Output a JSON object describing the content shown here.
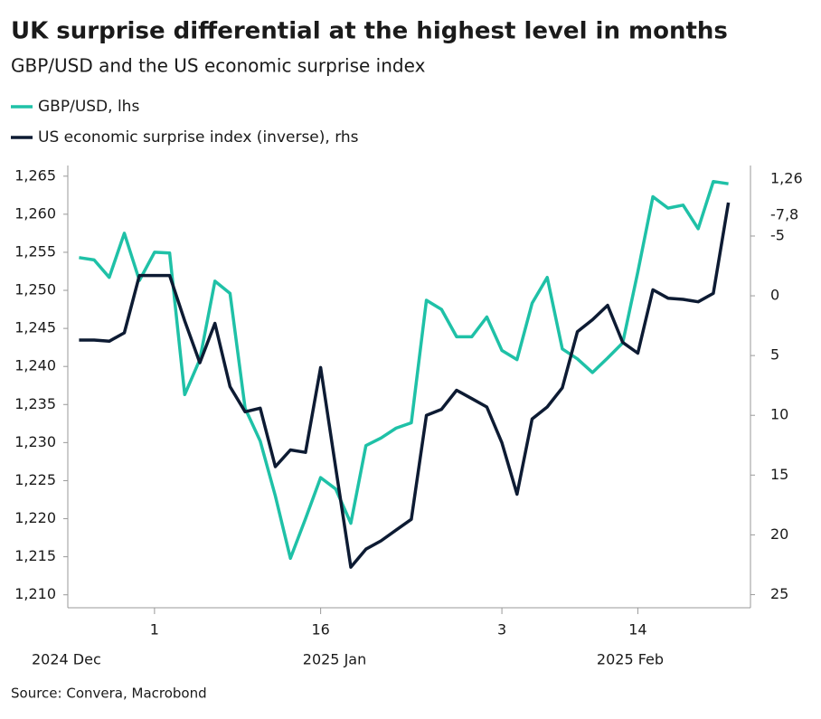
{
  "chart_data": {
    "type": "line",
    "title": "UK surprise differential at the highest level in months",
    "subtitle": "GBP/USD and the US economic surprise index",
    "source": "Source: Convera, Macrobond",
    "categories": [
      null,
      null,
      null,
      null,
      null,
      "1",
      null,
      null,
      null,
      null,
      null,
      null,
      null,
      null,
      null,
      null,
      "16",
      null,
      null,
      null,
      null,
      null,
      null,
      null,
      null,
      null,
      null,
      null,
      "3",
      null,
      null,
      null,
      null,
      null,
      null,
      null,
      null,
      "14",
      null,
      null,
      null,
      null,
      null,
      null
    ],
    "x_groups": [
      "2024 Dec",
      "2025 Jan",
      "2025 Feb"
    ],
    "series": [
      {
        "name": "GBP/USD, lhs",
        "color": "#1fc1a7",
        "axis": "y",
        "end_label": "1,26",
        "values": [
          1.2543,
          1.254,
          1.2517,
          1.2575,
          1.2513,
          1.255,
          1.2549,
          1.2363,
          1.2409,
          1.2512,
          1.2496,
          1.2345,
          1.2302,
          1.223,
          1.2148,
          1.22,
          1.2254,
          1.2239,
          1.2194,
          1.2296,
          1.2306,
          1.2319,
          1.2326,
          1.2487,
          1.2475,
          1.2439,
          1.2439,
          1.2465,
          1.2421,
          1.2409,
          1.2483,
          1.2517,
          1.2423,
          1.241,
          1.2392,
          1.2411,
          1.2431,
          1.2524,
          1.2623,
          1.2608,
          1.2612,
          1.2581,
          1.2643,
          1.264
        ]
      },
      {
        "name": "US economic surprise index (inverse), rhs",
        "color": "#0d1b33",
        "axis": "y2",
        "end_label": "-7,8",
        "values": [
          3.7,
          3.7,
          3.8,
          3.1,
          -1.7,
          -1.7,
          -1.7,
          2.1,
          5.6,
          2.3,
          7.6,
          9.7,
          9.4,
          14.3,
          12.9,
          13.1,
          6.0,
          14.4,
          22.7,
          21.2,
          20.5,
          19.6,
          18.7,
          10.0,
          9.5,
          7.9,
          8.6,
          9.3,
          12.3,
          16.6,
          10.3,
          9.3,
          7.7,
          3.0,
          2.0,
          0.8,
          3.9,
          4.8,
          -0.5,
          0.2,
          0.3,
          0.5,
          -0.2,
          -7.8
        ]
      }
    ],
    "ylim": [
      1.2083,
      1.2664
    ],
    "yticks": [
      {
        "value": 1.21,
        "label": "1,210"
      },
      {
        "value": 1.215,
        "label": "1,215"
      },
      {
        "value": 1.22,
        "label": "1,220"
      },
      {
        "value": 1.225,
        "label": "1,225"
      },
      {
        "value": 1.23,
        "label": "1,230"
      },
      {
        "value": 1.235,
        "label": "1,235"
      },
      {
        "value": 1.24,
        "label": "1,240"
      },
      {
        "value": 1.245,
        "label": "1,245"
      },
      {
        "value": 1.25,
        "label": "1,250"
      },
      {
        "value": 1.255,
        "label": "1,255"
      },
      {
        "value": 1.26,
        "label": "1,260"
      },
      {
        "value": 1.265,
        "label": "1,265"
      }
    ],
    "y2lim": [
      26.1,
      -10.9
    ],
    "y2ticks": [
      25,
      20,
      15,
      10,
      5,
      0,
      -5
    ],
    "legend": "top-left"
  }
}
